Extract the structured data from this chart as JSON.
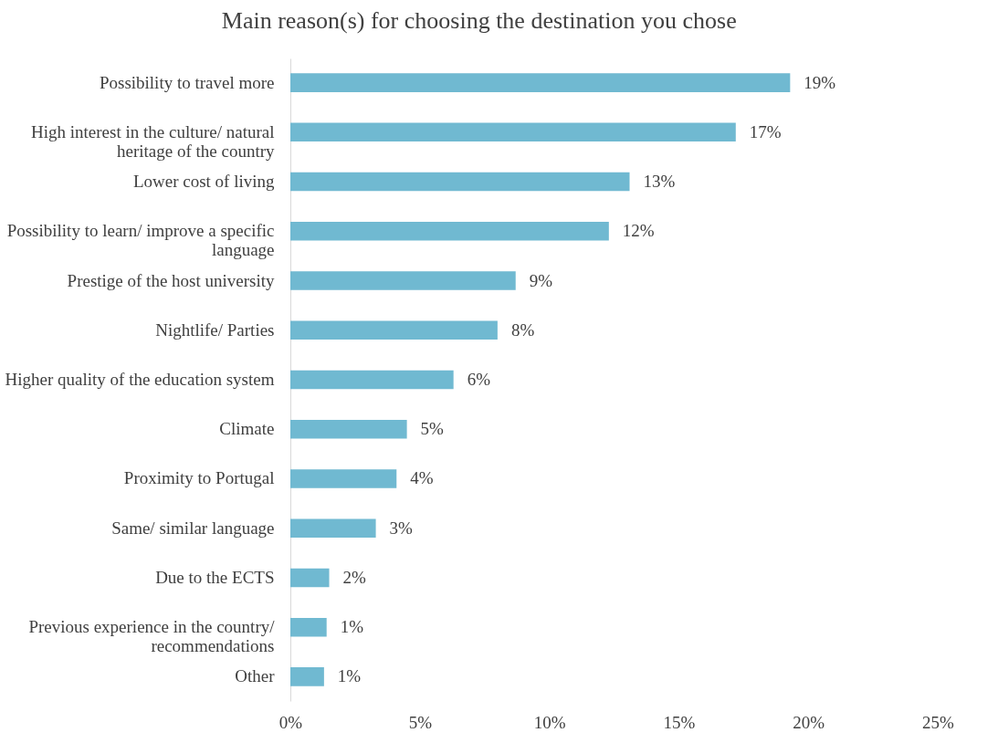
{
  "chart_data": {
    "type": "bar",
    "orientation": "horizontal",
    "title": "Main reason(s) for choosing the destination you chose",
    "categories": [
      "Possibility to travel more",
      "High interest in the culture/ natural heritage of the country",
      "Lower cost of living",
      "Possibility to learn/ improve a specific language",
      "Prestige of the host university",
      "Nightlife/ Parties",
      "Higher quality of the education system",
      "Climate",
      "Proximity to Portugal",
      "Same/ similar language",
      "Due to the ECTS",
      "Previous experience in the country/ recommendations",
      "Other"
    ],
    "values": [
      19.3,
      17.2,
      13.1,
      12.3,
      8.7,
      8.0,
      6.3,
      4.5,
      4.1,
      3.3,
      1.5,
      1.4,
      1.3
    ],
    "value_labels": [
      "19%",
      "17%",
      "13%",
      "12%",
      "9%",
      "8%",
      "6%",
      "5%",
      "4%",
      "3%",
      "2%",
      "1%",
      "1%"
    ],
    "color": "#70b9d1",
    "xlim": [
      0,
      25
    ],
    "xticks": [
      {
        "value": 0,
        "label": "0%"
      },
      {
        "value": 5,
        "label": "5%"
      },
      {
        "value": 10,
        "label": "10%"
      },
      {
        "value": 15,
        "label": "15%"
      },
      {
        "value": 20,
        "label": "20%"
      },
      {
        "value": 25,
        "label": "25%"
      }
    ],
    "grid": false
  }
}
